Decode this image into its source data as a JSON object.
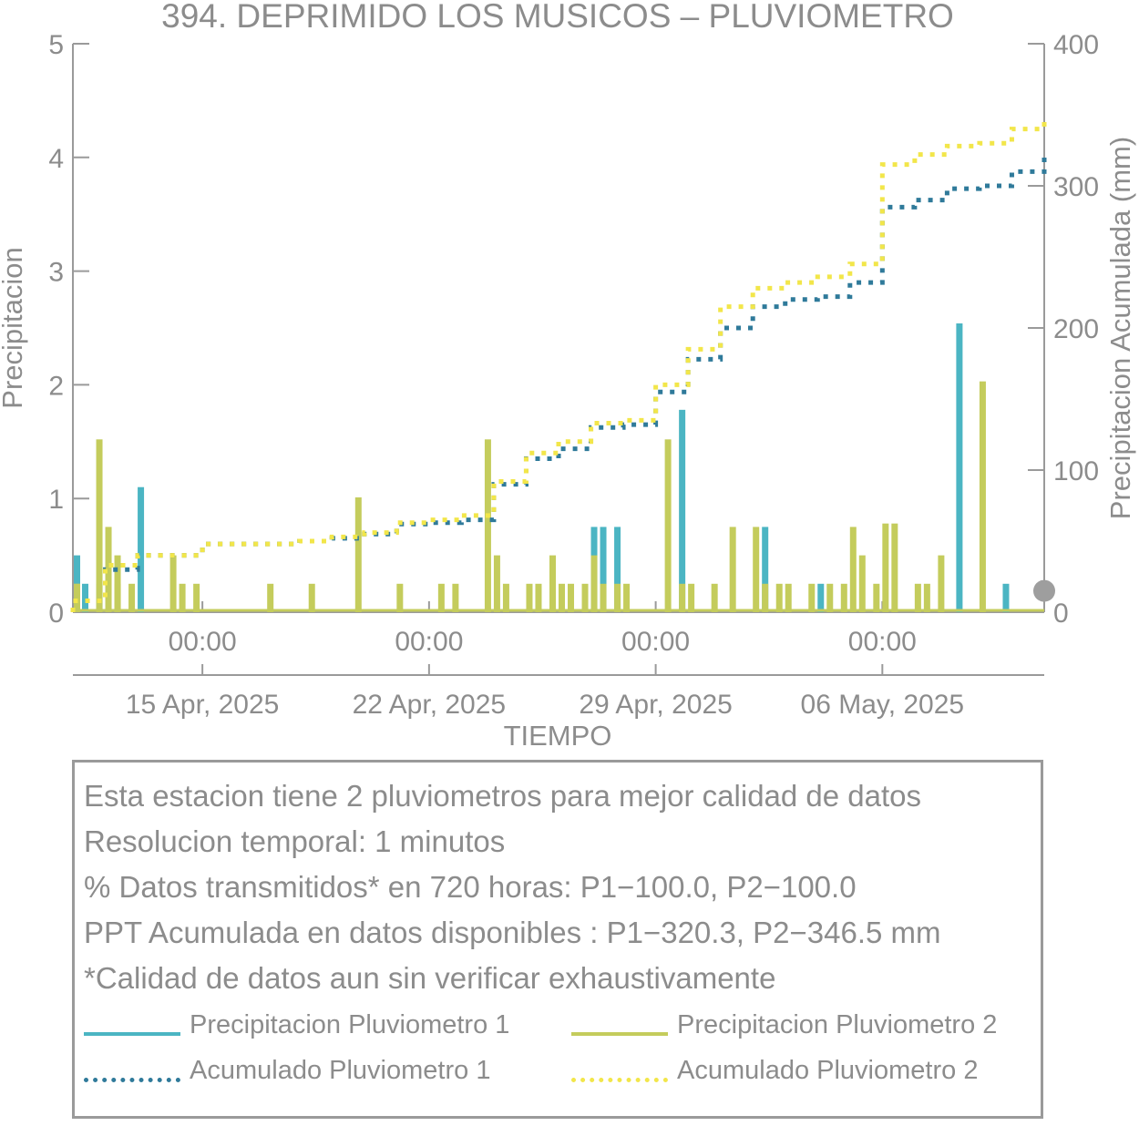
{
  "chart_data": {
    "type": "bar",
    "title": "394. DEPRIMIDO LOS MUSICOS – PLUVIOMETRO",
    "xlabel": "TIEMPO",
    "ylabel_left": "Precipitacion",
    "ylabel_right": "Precipitacion Acumulada (mm)",
    "ylim_left": [
      0,
      5
    ],
    "ylim_right": [
      0,
      400
    ],
    "yticks_left": [
      "0",
      "1",
      "2",
      "3",
      "4",
      "5"
    ],
    "yticks_right": [
      "0",
      "100",
      "200",
      "300",
      "400"
    ],
    "xlim": [
      "2025-04-11",
      "2025-05-11"
    ],
    "x_ticks": [
      {
        "date": "2025-04-15",
        "time": "00:00",
        "label": "15 Apr, 2025"
      },
      {
        "date": "2025-04-22",
        "time": "00:00",
        "label": "22 Apr, 2025"
      },
      {
        "date": "2025-04-29",
        "time": "00:00",
        "label": "29 Apr, 2025"
      },
      {
        "date": "2025-05-06",
        "time": "00:00",
        "label": "06 May, 2025"
      }
    ],
    "colors": {
      "p1": "#4bb5c3",
      "p2": "#c4cc5c",
      "acc1": "#2f7a9a",
      "acc2": "#f2e64a",
      "axis": "#9a9a9a",
      "dot": "#9e9e9e"
    },
    "series": [
      {
        "name": "Precipitacion Pluviometro 1",
        "axis": "left",
        "kind": "bar",
        "x": [
          "2025-04-11",
          "2025-04-11",
          "2025-04-11",
          "2025-04-12",
          "2025-04-13",
          "2025-05-02",
          "2025-04-28",
          "2025-04-27",
          "2025-04-27",
          "2025-04-30",
          "2025-05-04",
          "2025-05-08",
          "2025-05-10"
        ],
        "y": [
          0.5,
          0.25,
          0.25,
          0.25,
          1.1,
          0.75,
          0.75,
          0.75,
          0.75,
          1.78,
          0.25,
          2.54,
          0.25
        ]
      },
      {
        "name": "Precipitacion Pluviometro 2",
        "axis": "left",
        "kind": "bar",
        "x": [
          "2025-04-11",
          "2025-04-11",
          "2025-04-12",
          "2025-04-12",
          "2025-04-12",
          "2025-04-12",
          "2025-04-13",
          "2025-04-14",
          "2025-04-14",
          "2025-04-15",
          "2025-04-17",
          "2025-04-18",
          "2025-04-20",
          "2025-04-21",
          "2025-04-22",
          "2025-04-23",
          "2025-04-24",
          "2025-04-24",
          "2025-04-24",
          "2025-04-25",
          "2025-04-25",
          "2025-04-26",
          "2025-04-26",
          "2025-04-26",
          "2025-04-27",
          "2025-04-27",
          "2025-04-27",
          "2025-04-28",
          "2025-04-28",
          "2025-04-29",
          "2025-04-30",
          "2025-04-30",
          "2025-05-01",
          "2025-05-01",
          "2025-05-02",
          "2025-05-02",
          "2025-05-03",
          "2025-05-03",
          "2025-05-04",
          "2025-05-04",
          "2025-05-05",
          "2025-05-05",
          "2025-05-05",
          "2025-05-06",
          "2025-05-06",
          "2025-05-06",
          "2025-05-07",
          "2025-05-07",
          "2025-05-08",
          "2025-05-09"
        ],
        "y": [
          0.25,
          0.25,
          0.5,
          1.52,
          0.75,
          0.25,
          0.25,
          0.5,
          0.25,
          0.25,
          0.25,
          0.25,
          1.01,
          0.25,
          0.25,
          0.25,
          0.5,
          0.25,
          1.52,
          0.25,
          0.25,
          0.5,
          0.25,
          0.25,
          0.25,
          0.5,
          0.25,
          0.25,
          0.25,
          1.52,
          0.25,
          0.25,
          0.75,
          0.25,
          0.75,
          0.25,
          0.25,
          0.25,
          0.25,
          0.25,
          0.75,
          0.5,
          0.25,
          0.78,
          0.78,
          0.25,
          0.25,
          0.25,
          0.5,
          2.03
        ]
      },
      {
        "name": "Acumulado Pluviometro 1",
        "axis": "right",
        "kind": "step",
        "x": [
          "2025-04-11",
          "2025-04-11",
          "2025-04-12",
          "2025-04-12",
          "2025-04-13",
          "2025-04-14",
          "2025-04-15",
          "2025-04-17",
          "2025-04-18",
          "2025-04-19",
          "2025-04-20",
          "2025-04-21",
          "2025-04-22",
          "2025-04-23",
          "2025-04-24",
          "2025-04-24",
          "2025-04-25",
          "2025-04-26",
          "2025-04-27",
          "2025-04-28",
          "2025-04-29",
          "2025-04-29",
          "2025-04-30",
          "2025-05-01",
          "2025-05-02",
          "2025-05-03",
          "2025-05-04",
          "2025-05-05",
          "2025-05-05",
          "2025-05-06",
          "2025-05-06",
          "2025-05-07",
          "2025-05-08",
          "2025-05-09",
          "2025-05-10",
          "2025-05-11"
        ],
        "y": [
          0,
          8,
          15,
          30,
          40,
          40,
          48,
          48,
          50,
          52,
          55,
          62,
          63,
          65,
          66,
          90,
          108,
          115,
          130,
          132,
          145,
          155,
          178,
          200,
          215,
          220,
          222,
          222,
          232,
          240,
          285,
          290,
          298,
          300,
          310,
          320
        ]
      },
      {
        "name": "Acumulado Pluviometro 2",
        "axis": "right",
        "kind": "step",
        "x": [
          "2025-04-11",
          "2025-04-11",
          "2025-04-12",
          "2025-04-12",
          "2025-04-13",
          "2025-04-14",
          "2025-04-15",
          "2025-04-17",
          "2025-04-18",
          "2025-04-19",
          "2025-04-20",
          "2025-04-21",
          "2025-04-22",
          "2025-04-23",
          "2025-04-24",
          "2025-04-24",
          "2025-04-25",
          "2025-04-26",
          "2025-04-27",
          "2025-04-28",
          "2025-04-29",
          "2025-04-29",
          "2025-04-30",
          "2025-05-01",
          "2025-05-02",
          "2025-05-03",
          "2025-05-04",
          "2025-05-05",
          "2025-05-05",
          "2025-05-06",
          "2025-05-06",
          "2025-05-07",
          "2025-05-08",
          "2025-05-09",
          "2025-05-10",
          "2025-05-11"
        ],
        "y": [
          0,
          8,
          18,
          33,
          40,
          40,
          48,
          48,
          50,
          53,
          56,
          63,
          65,
          68,
          68,
          92,
          112,
          120,
          133,
          135,
          150,
          160,
          185,
          215,
          228,
          232,
          236,
          236,
          245,
          258,
          315,
          322,
          328,
          330,
          340,
          346.5
        ]
      }
    ],
    "marker": {
      "axis": "right",
      "x": "2025-05-11",
      "y": 15
    }
  },
  "info": {
    "lines": [
      "Esta estacion tiene 2 pluviometros para mejor calidad de datos",
      "Resolucion temporal: 1 minutos",
      "% Datos transmitidos* en 720 horas: P1−100.0, P2−100.0",
      "PPT Acumulada en datos disponibles : P1−320.3, P2−346.5 mm",
      "*Calidad de datos aun sin verificar exhaustivamente"
    ],
    "legend": [
      {
        "label": "Precipitacion Pluviometro 1",
        "style": "solid",
        "color": "#4bb5c3"
      },
      {
        "label": "Precipitacion Pluviometro 2",
        "style": "solid",
        "color": "#c4cc5c"
      },
      {
        "label": "Acumulado Pluviometro 1",
        "style": "dotted",
        "color": "#2f7a9a"
      },
      {
        "label": "Acumulado Pluviometro 2",
        "style": "dotted",
        "color": "#f2e64a"
      }
    ]
  }
}
